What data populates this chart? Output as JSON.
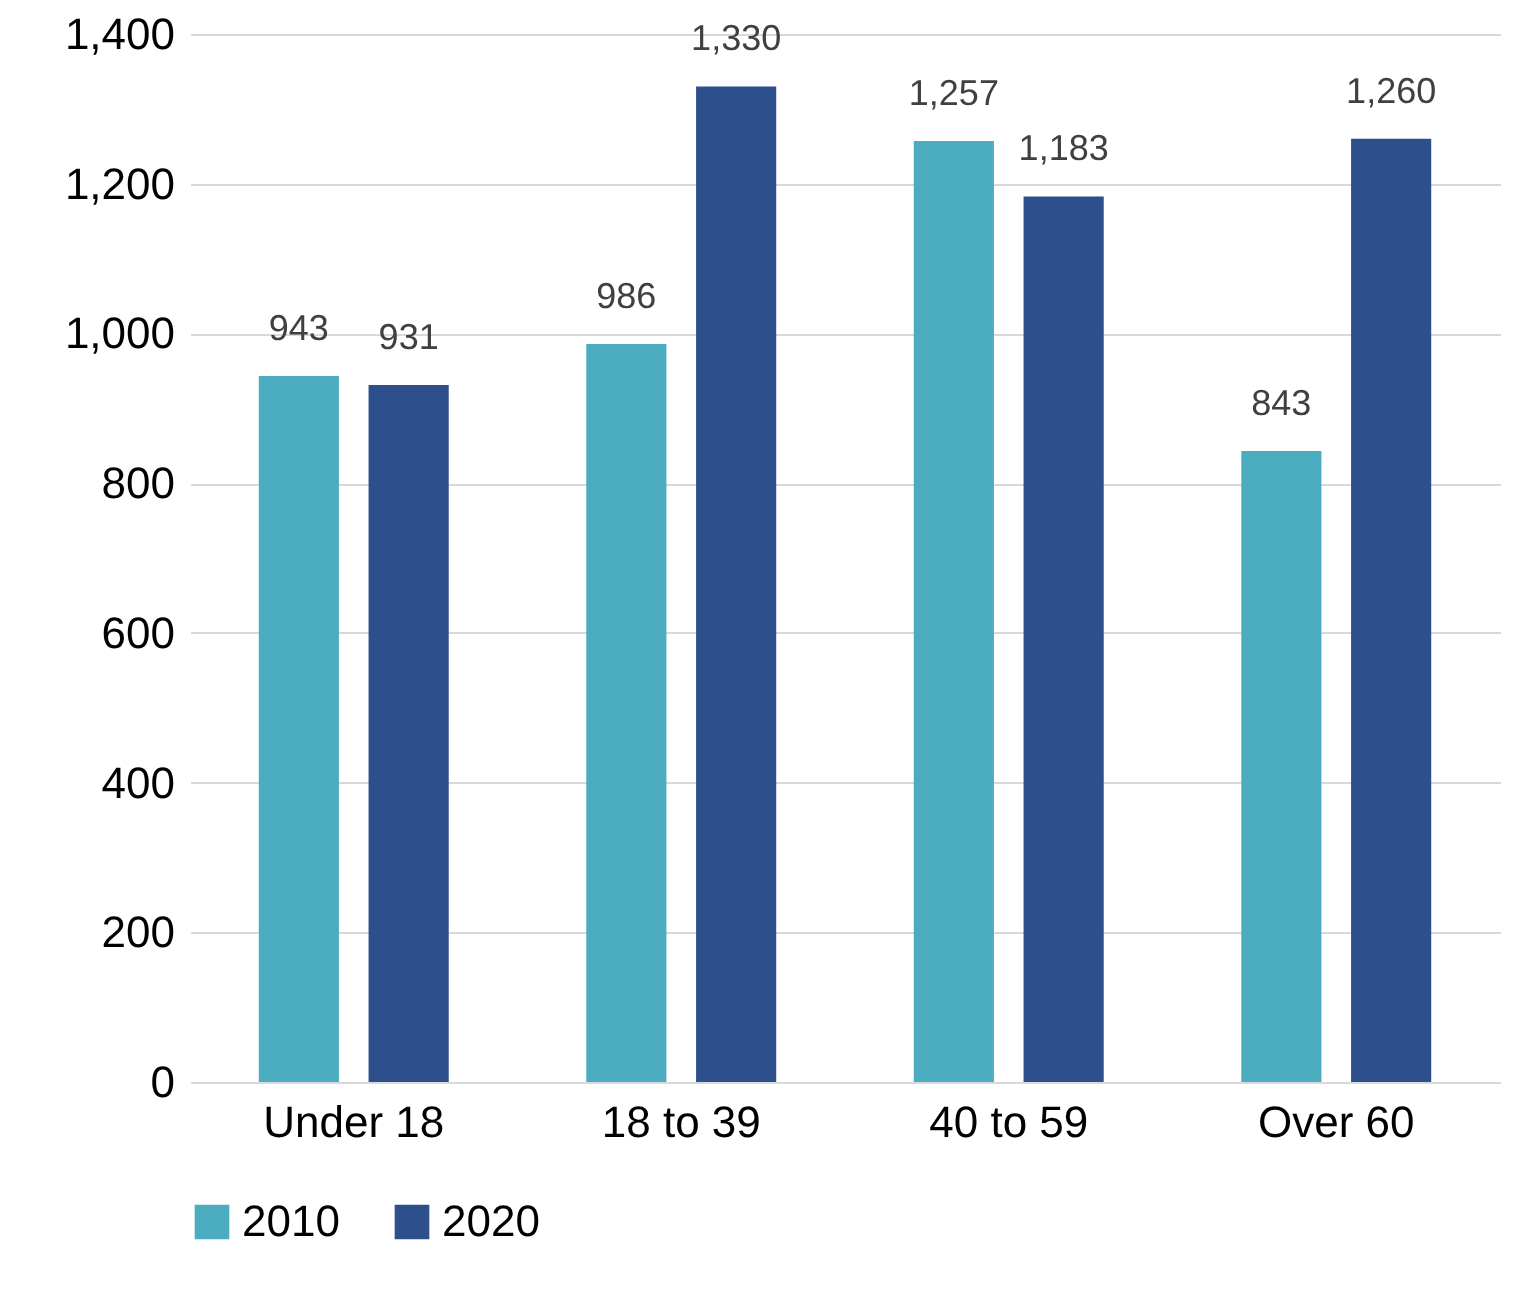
{
  "chart_data": {
    "type": "bar",
    "categories": [
      "Under 18",
      "18 to 39",
      "40 to 59",
      "Over 60"
    ],
    "series": [
      {
        "name": "2010",
        "color": "#4bacc0",
        "values": [
          943,
          986,
          1257,
          843
        ],
        "value_labels": [
          "943",
          "986",
          "1,257",
          "843"
        ]
      },
      {
        "name": "2020",
        "color": "#2d4f8b",
        "values": [
          931,
          1330,
          1183,
          1260
        ],
        "value_labels": [
          "931",
          "1,330",
          "1,183",
          "1,260"
        ]
      }
    ],
    "ylim": [
      0,
      1400
    ],
    "yticks": [
      0,
      200,
      400,
      600,
      800,
      {
        "value": 1000,
        "label": "1,000"
      },
      {
        "value": 1200,
        "label": "1,200"
      },
      {
        "value": 1400,
        "label": "1,400"
      }
    ],
    "grid": "y",
    "legend": "bottom"
  }
}
